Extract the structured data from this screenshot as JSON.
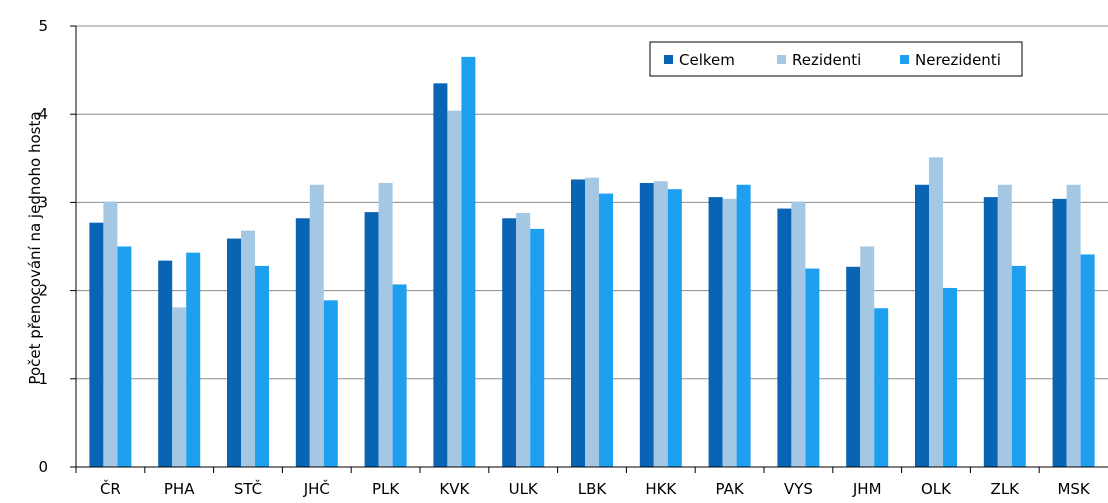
{
  "chart_data": {
    "type": "bar",
    "title": "",
    "xlabel": "",
    "ylabel": "Počet přenocování na jednoho hosta",
    "ylim": [
      0,
      5
    ],
    "yticks": [
      "0",
      "1",
      "2",
      "3",
      "4",
      "5"
    ],
    "grid": true,
    "legend_position": "top-right",
    "categories": [
      "ČR",
      "PHA",
      "STČ",
      "JHČ",
      "PLK",
      "KVK",
      "ULK",
      "LBK",
      "HKK",
      "PAK",
      "VYS",
      "JHM",
      "OLK",
      "ZLK",
      "MSK"
    ],
    "series": [
      {
        "name": "Celkem",
        "color": "#0A64B4",
        "values": [
          2.77,
          2.34,
          2.59,
          2.82,
          2.89,
          4.35,
          2.82,
          3.26,
          3.22,
          3.06,
          2.93,
          2.27,
          3.2,
          3.06,
          3.04
        ]
      },
      {
        "name": "Rezidenti",
        "color": "#A4C8E4",
        "values": [
          3.01,
          1.81,
          2.68,
          3.2,
          3.22,
          4.04,
          2.88,
          3.28,
          3.24,
          3.04,
          3.01,
          2.5,
          3.51,
          3.2,
          3.2
        ]
      },
      {
        "name": "Nerezidenti",
        "color": "#1E9FF0",
        "values": [
          2.5,
          2.43,
          2.28,
          1.89,
          2.07,
          4.65,
          2.7,
          3.1,
          3.15,
          3.2,
          2.25,
          1.8,
          2.03,
          2.28,
          2.41
        ]
      }
    ]
  }
}
